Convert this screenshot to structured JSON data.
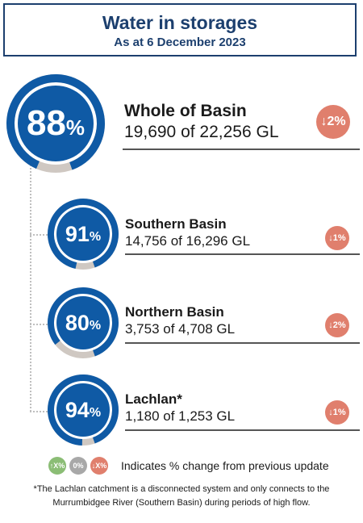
{
  "header": {
    "title": "Water in storages",
    "subtitle": "As at 6 December 2023"
  },
  "colors": {
    "primary": "#0f5aa5",
    "track": "#cfc8c2",
    "decrease": "#e07f6d",
    "increase": "#8bbd75",
    "nochange": "#a8a8a8",
    "heading": "#1c3f6e"
  },
  "items": [
    {
      "name": "Whole of Basin",
      "pct_num": "88",
      "pct_sym": "%",
      "fraction": 0.88,
      "detail": "19,690 of 22,256 GL",
      "change": "↓2%",
      "change_icon": "down-arrow-icon"
    },
    {
      "name": "Southern Basin",
      "pct_num": "91",
      "pct_sym": "%",
      "fraction": 0.91,
      "detail": "14,756 of 16,296 GL",
      "change": "↓1%",
      "change_icon": "down-arrow-icon"
    },
    {
      "name": "Northern Basin",
      "pct_num": "80",
      "pct_sym": "%",
      "fraction": 0.8,
      "detail": "3,753 of 4,708 GL",
      "change": "↓2%",
      "change_icon": "down-arrow-icon"
    },
    {
      "name": "Lachlan*",
      "pct_num": "94",
      "pct_sym": "%",
      "fraction": 0.94,
      "detail": "1,180 of 1,253 GL",
      "change": "↓1%",
      "change_icon": "down-arrow-icon"
    }
  ],
  "legend": {
    "increase": "↑X%",
    "nochange": "0%",
    "decrease": "↓X%",
    "text": "Indicates % change from previous update"
  },
  "footnote": "*The Lachlan catchment is a disconnected system and only connects to the Murrumbidgee River (Southern Basin) during periods of high flow."
}
